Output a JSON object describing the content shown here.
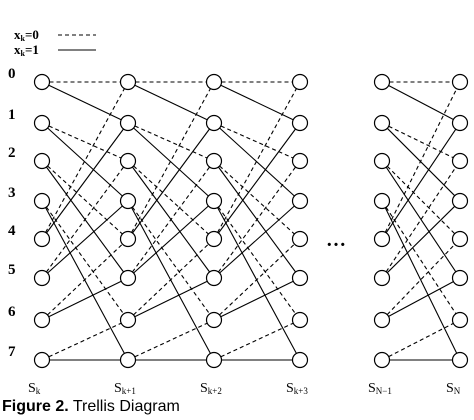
{
  "legend": {
    "zero": {
      "base": "x",
      "sub": "k",
      "rest": "=0"
    },
    "one": {
      "base": "x",
      "sub": "k",
      "rest": "=1"
    }
  },
  "states": [
    "0",
    "1",
    "2",
    "3",
    "4",
    "5",
    "6",
    "7"
  ],
  "stages": [
    {
      "base": "S",
      "sub": "k"
    },
    {
      "base": "S",
      "sub": "k+1"
    },
    {
      "base": "S",
      "sub": "k+2"
    },
    {
      "base": "S",
      "sub": "k+3"
    },
    {
      "base": "S",
      "sub": "N−1"
    },
    {
      "base": "S",
      "sub": "N"
    }
  ],
  "ellipsis": "…",
  "caption": {
    "figure": "Figure 2.",
    "title": "Trellis Diagram"
  }
}
